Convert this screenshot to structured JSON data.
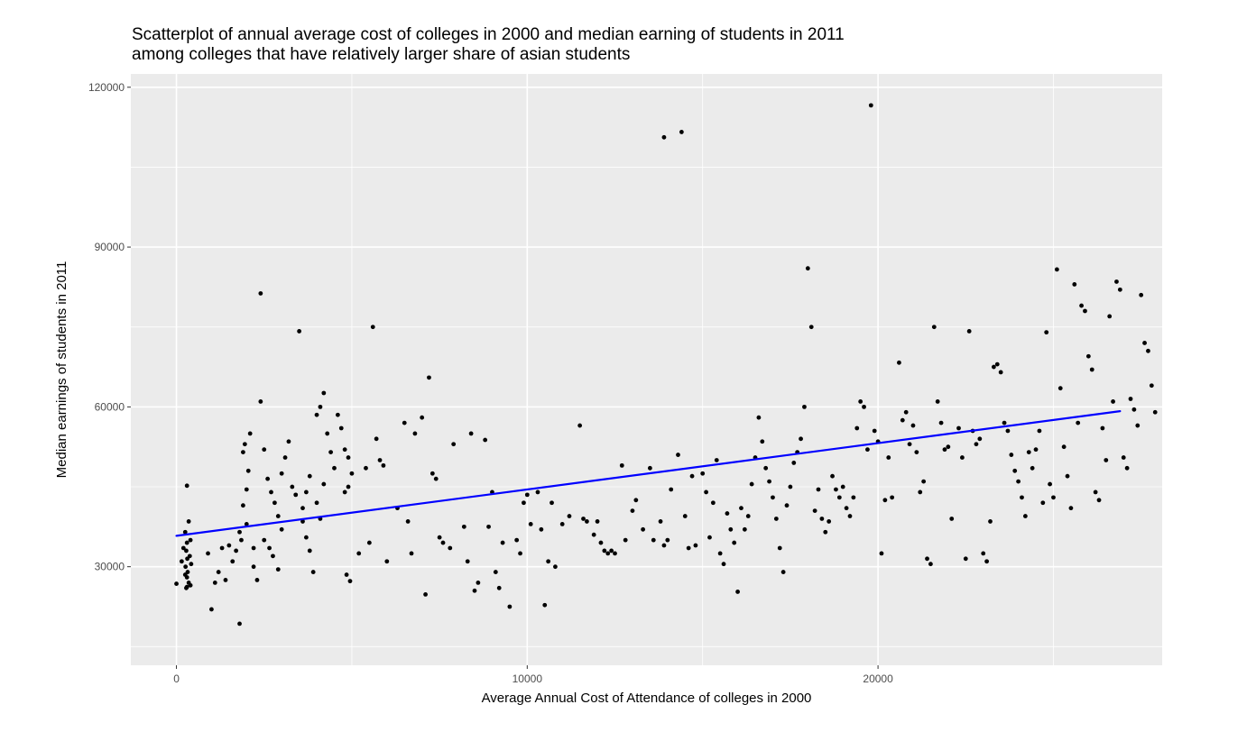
{
  "chart_data": {
    "type": "scatter",
    "title": "Scatterplot of annual average cost of colleges in 2000 and median earning of students in 2011",
    "subtitle": "among colleges that have relatively larger share of asian students",
    "xlabel": "Average Annual Cost of Attendance of colleges in 2000",
    "ylabel": "Median earnings of students in 2011",
    "xlim": [
      -1300,
      28100
    ],
    "ylim": [
      11500,
      122500
    ],
    "xticks": [
      0,
      10000,
      20000
    ],
    "yticks": [
      30000,
      60000,
      90000,
      120000
    ],
    "grid": true,
    "legend": "none",
    "colors": {
      "panel": "#ebebeb",
      "grid": "#ffffff",
      "points": "#000000",
      "fit_line": "#0000ff"
    },
    "fit_line": {
      "x": [
        0,
        26900
      ],
      "y": [
        35800,
        59200
      ]
    },
    "points": [
      [
        0,
        26800
      ],
      [
        300,
        45200
      ],
      [
        350,
        38500
      ],
      [
        250,
        36500
      ],
      [
        300,
        34500
      ],
      [
        280,
        33000
      ],
      [
        310,
        31500
      ],
      [
        260,
        30000
      ],
      [
        320,
        29000
      ],
      [
        300,
        28000
      ],
      [
        350,
        27000
      ],
      [
        280,
        26000
      ],
      [
        400,
        26500
      ],
      [
        200,
        33500
      ],
      [
        150,
        31000
      ],
      [
        400,
        35000
      ],
      [
        380,
        32000
      ],
      [
        250,
        28500
      ],
      [
        300,
        26200
      ],
      [
        420,
        30500
      ],
      [
        1000,
        22000
      ],
      [
        1300,
        33500
      ],
      [
        1500,
        34000
      ],
      [
        1200,
        29000
      ],
      [
        1600,
        31000
      ],
      [
        1400,
        27500
      ],
      [
        1100,
        27000
      ],
      [
        1700,
        33000
      ],
      [
        900,
        32500
      ],
      [
        1800,
        19300
      ],
      [
        1800,
        36500
      ],
      [
        1900,
        41500
      ],
      [
        2000,
        44500
      ],
      [
        2050,
        48000
      ],
      [
        1900,
        51500
      ],
      [
        1950,
        53000
      ],
      [
        2100,
        55000
      ],
      [
        2000,
        38000
      ],
      [
        1850,
        35000
      ],
      [
        2200,
        33500
      ],
      [
        2300,
        27500
      ],
      [
        2400,
        81300
      ],
      [
        2400,
        61000
      ],
      [
        2500,
        52000
      ],
      [
        2600,
        46500
      ],
      [
        2700,
        44000
      ],
      [
        2800,
        42000
      ],
      [
        2900,
        39500
      ],
      [
        3000,
        37000
      ],
      [
        2500,
        35000
      ],
      [
        2650,
        33500
      ],
      [
        2750,
        32000
      ],
      [
        2200,
        30000
      ],
      [
        2900,
        29500
      ],
      [
        3000,
        47500
      ],
      [
        3100,
        50500
      ],
      [
        3200,
        53500
      ],
      [
        3300,
        45000
      ],
      [
        3400,
        43500
      ],
      [
        3500,
        74200
      ],
      [
        3600,
        41000
      ],
      [
        3600,
        38500
      ],
      [
        3700,
        35500
      ],
      [
        3800,
        33000
      ],
      [
        3900,
        29000
      ],
      [
        4000,
        58500
      ],
      [
        4100,
        60000
      ],
      [
        4200,
        62600
      ],
      [
        4300,
        55000
      ],
      [
        4400,
        51500
      ],
      [
        4500,
        48500
      ],
      [
        4200,
        45500
      ],
      [
        4000,
        42000
      ],
      [
        4100,
        39000
      ],
      [
        3800,
        47000
      ],
      [
        3700,
        44000
      ],
      [
        4600,
        58500
      ],
      [
        4700,
        56000
      ],
      [
        4800,
        52000
      ],
      [
        4900,
        50500
      ],
      [
        5000,
        47500
      ],
      [
        4900,
        45000
      ],
      [
        4800,
        44000
      ],
      [
        4850,
        28500
      ],
      [
        4950,
        27300
      ],
      [
        5200,
        32500
      ],
      [
        5400,
        48500
      ],
      [
        5500,
        34500
      ],
      [
        5600,
        75000
      ],
      [
        5700,
        54000
      ],
      [
        5800,
        50000
      ],
      [
        5900,
        49000
      ],
      [
        6000,
        31000
      ],
      [
        6300,
        41000
      ],
      [
        6500,
        57000
      ],
      [
        6600,
        38500
      ],
      [
        6700,
        32500
      ],
      [
        6800,
        55000
      ],
      [
        7000,
        58000
      ],
      [
        7100,
        24800
      ],
      [
        7200,
        65500
      ],
      [
        7300,
        47500
      ],
      [
        7400,
        46500
      ],
      [
        7500,
        35500
      ],
      [
        7600,
        34500
      ],
      [
        7800,
        33500
      ],
      [
        7900,
        53000
      ],
      [
        8200,
        37500
      ],
      [
        8300,
        31000
      ],
      [
        8400,
        55000
      ],
      [
        8500,
        25500
      ],
      [
        8600,
        27000
      ],
      [
        8800,
        53800
      ],
      [
        8900,
        37500
      ],
      [
        9000,
        44000
      ],
      [
        9100,
        29000
      ],
      [
        9200,
        26000
      ],
      [
        9300,
        34500
      ],
      [
        9500,
        22500
      ],
      [
        9700,
        35000
      ],
      [
        9800,
        32500
      ],
      [
        9900,
        42000
      ],
      [
        10000,
        43500
      ],
      [
        10100,
        38000
      ],
      [
        10300,
        44000
      ],
      [
        10400,
        37000
      ],
      [
        10500,
        22800
      ],
      [
        10600,
        31000
      ],
      [
        10700,
        42000
      ],
      [
        10800,
        30000
      ],
      [
        11000,
        38000
      ],
      [
        11200,
        39500
      ],
      [
        11500,
        56500
      ],
      [
        11600,
        39000
      ],
      [
        11700,
        38500
      ],
      [
        11900,
        36000
      ],
      [
        12000,
        38500
      ],
      [
        12100,
        34500
      ],
      [
        12200,
        33000
      ],
      [
        12300,
        32500
      ],
      [
        12400,
        33000
      ],
      [
        12500,
        32500
      ],
      [
        12700,
        49000
      ],
      [
        12800,
        35000
      ],
      [
        13000,
        40500
      ],
      [
        13100,
        42500
      ],
      [
        13300,
        37000
      ],
      [
        13500,
        48500
      ],
      [
        13600,
        35000
      ],
      [
        13800,
        38500
      ],
      [
        13900,
        34000
      ],
      [
        14000,
        35000
      ],
      [
        13900,
        110600
      ],
      [
        14100,
        44500
      ],
      [
        14300,
        51000
      ],
      [
        14400,
        111600
      ],
      [
        14500,
        39500
      ],
      [
        14600,
        33500
      ],
      [
        14700,
        47000
      ],
      [
        14800,
        34000
      ],
      [
        15000,
        47500
      ],
      [
        15100,
        44000
      ],
      [
        15200,
        35500
      ],
      [
        15300,
        42000
      ],
      [
        15400,
        50000
      ],
      [
        15500,
        32500
      ],
      [
        15600,
        30500
      ],
      [
        15700,
        40000
      ],
      [
        15800,
        37000
      ],
      [
        15900,
        34500
      ],
      [
        16000,
        25300
      ],
      [
        16100,
        41000
      ],
      [
        16200,
        37000
      ],
      [
        16300,
        39500
      ],
      [
        16400,
        45500
      ],
      [
        16500,
        50500
      ],
      [
        16600,
        58000
      ],
      [
        16700,
        53500
      ],
      [
        16800,
        48500
      ],
      [
        16900,
        46000
      ],
      [
        17000,
        43000
      ],
      [
        17100,
        39000
      ],
      [
        17200,
        33500
      ],
      [
        17300,
        29000
      ],
      [
        17400,
        41500
      ],
      [
        17500,
        45000
      ],
      [
        17600,
        49500
      ],
      [
        17700,
        51500
      ],
      [
        17800,
        54000
      ],
      [
        17900,
        60000
      ],
      [
        18000,
        86000
      ],
      [
        18100,
        75000
      ],
      [
        18200,
        40500
      ],
      [
        18300,
        44500
      ],
      [
        18400,
        39000
      ],
      [
        18500,
        36500
      ],
      [
        18600,
        38500
      ],
      [
        18700,
        47000
      ],
      [
        18800,
        44500
      ],
      [
        18900,
        43000
      ],
      [
        19000,
        45000
      ],
      [
        19100,
        41000
      ],
      [
        19200,
        39500
      ],
      [
        19300,
        43000
      ],
      [
        19400,
        56000
      ],
      [
        19500,
        61000
      ],
      [
        19600,
        60000
      ],
      [
        19700,
        52000
      ],
      [
        19800,
        116600
      ],
      [
        19900,
        55500
      ],
      [
        20000,
        53500
      ],
      [
        20100,
        32500
      ],
      [
        20200,
        42500
      ],
      [
        20300,
        50500
      ],
      [
        20400,
        43000
      ],
      [
        20600,
        68300
      ],
      [
        20700,
        57500
      ],
      [
        20800,
        59000
      ],
      [
        20900,
        53000
      ],
      [
        21000,
        56500
      ],
      [
        21100,
        51500
      ],
      [
        21200,
        44000
      ],
      [
        21300,
        46000
      ],
      [
        21400,
        31500
      ],
      [
        21500,
        30500
      ],
      [
        21600,
        75000
      ],
      [
        21700,
        61000
      ],
      [
        21800,
        57000
      ],
      [
        21900,
        52000
      ],
      [
        22000,
        52500
      ],
      [
        22100,
        39000
      ],
      [
        22300,
        56000
      ],
      [
        22400,
        50500
      ],
      [
        22500,
        31500
      ],
      [
        22600,
        74200
      ],
      [
        22700,
        55500
      ],
      [
        22800,
        53000
      ],
      [
        22900,
        54000
      ],
      [
        23000,
        32500
      ],
      [
        23100,
        31000
      ],
      [
        23200,
        38500
      ],
      [
        23300,
        67500
      ],
      [
        23400,
        68000
      ],
      [
        23500,
        66500
      ],
      [
        23600,
        57000
      ],
      [
        23700,
        55500
      ],
      [
        23800,
        51000
      ],
      [
        23900,
        48000
      ],
      [
        24000,
        46000
      ],
      [
        24100,
        43000
      ],
      [
        24200,
        39500
      ],
      [
        24300,
        51500
      ],
      [
        24400,
        48500
      ],
      [
        24500,
        52000
      ],
      [
        24600,
        55500
      ],
      [
        24700,
        42000
      ],
      [
        24800,
        74000
      ],
      [
        24900,
        45500
      ],
      [
        25000,
        43000
      ],
      [
        25100,
        85800
      ],
      [
        25200,
        63500
      ],
      [
        25300,
        52500
      ],
      [
        25400,
        47000
      ],
      [
        25500,
        41000
      ],
      [
        25600,
        83000
      ],
      [
        25700,
        57000
      ],
      [
        25800,
        79000
      ],
      [
        25900,
        78000
      ],
      [
        26000,
        69500
      ],
      [
        26100,
        67000
      ],
      [
        26200,
        44000
      ],
      [
        26300,
        42500
      ],
      [
        26400,
        56000
      ],
      [
        26500,
        50000
      ],
      [
        26600,
        77000
      ],
      [
        26700,
        61000
      ],
      [
        26800,
        83500
      ],
      [
        26900,
        82000
      ],
      [
        27000,
        50500
      ],
      [
        27100,
        48500
      ],
      [
        27200,
        61500
      ],
      [
        27300,
        59500
      ],
      [
        27400,
        56500
      ],
      [
        27500,
        81000
      ],
      [
        27600,
        72000
      ],
      [
        27700,
        70500
      ],
      [
        27800,
        64000
      ],
      [
        27900,
        59000
      ]
    ]
  }
}
